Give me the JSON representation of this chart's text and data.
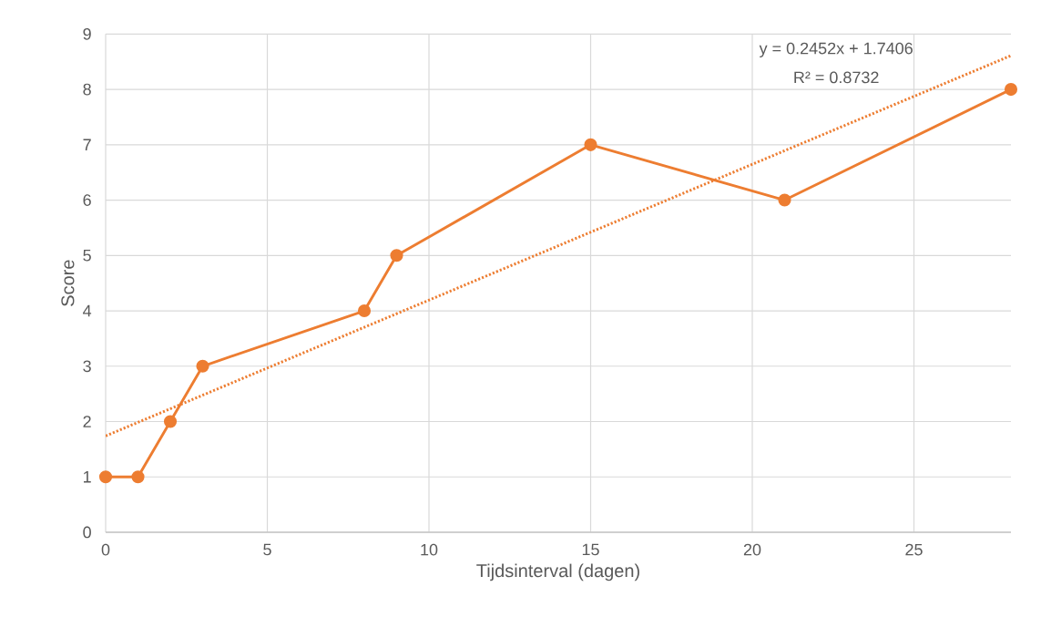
{
  "chart_data": {
    "type": "line",
    "xlabel": "Tijdsinterval (dagen)",
    "ylabel": "Score",
    "x": [
      0,
      1,
      2,
      3,
      8,
      9,
      15,
      21,
      28
    ],
    "series": [
      {
        "color": "#ed7d31",
        "values": [
          1,
          1,
          2,
          3,
          4,
          5,
          7,
          6,
          8
        ],
        "marker": "circle",
        "line_style": "solid"
      },
      {
        "type": "line",
        "color": "#ed7d31",
        "x": [
          0,
          28
        ],
        "values": [
          1.74,
          8.61
        ],
        "marker": "none",
        "line_style": "dotted"
      }
    ],
    "annotations": [
      "y = 0.2452x + 1.7406",
      "R² = 0.8732"
    ],
    "xlim": [
      0,
      28
    ],
    "ylim": [
      0,
      9
    ],
    "xticks": [
      0,
      5,
      10,
      15,
      20,
      25
    ],
    "yticks": [
      0,
      1,
      2,
      3,
      4,
      5,
      6,
      7,
      8,
      9
    ],
    "grid": true
  }
}
